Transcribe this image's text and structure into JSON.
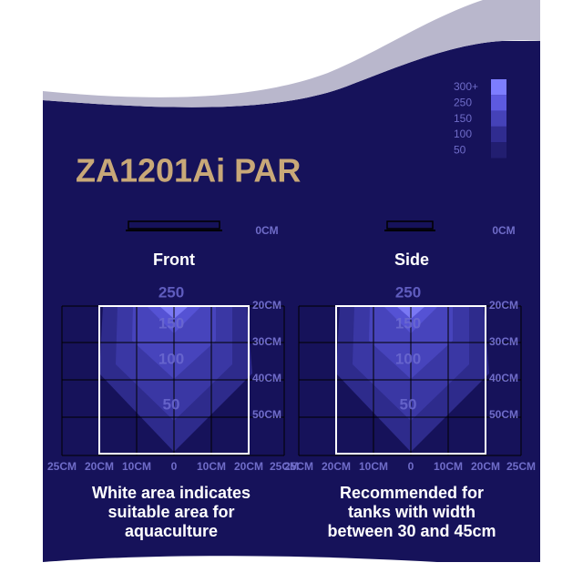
{
  "title": "ZA1201Ai   PAR",
  "legend": [
    "300+",
    "250",
    "150",
    "100",
    "50"
  ],
  "panels": [
    {
      "label": "Front",
      "depth_labels": [
        "0CM",
        "20CM",
        "30CM",
        "40CM",
        "50CM"
      ],
      "contour_labels": [
        "250",
        "150",
        "100",
        "50"
      ],
      "x_labels": [
        "25CM",
        "20CM",
        "10CM",
        "0",
        "10CM",
        "20CM",
        "25CM"
      ],
      "caption": [
        "White area indicates",
        "suitable area for",
        "aquaculture"
      ]
    },
    {
      "label": "Side",
      "depth_labels": [
        "0CM",
        "20CM",
        "30CM",
        "40CM",
        "50CM"
      ],
      "contour_labels": [
        "250",
        "150",
        "100",
        "50"
      ],
      "x_labels": [
        "25CM",
        "20CM",
        "10CM",
        "0",
        "10CM",
        "20CM",
        "25CM"
      ],
      "caption": [
        "Recommended for",
        "tanks with width",
        "between 30 and 45cm"
      ]
    }
  ]
}
